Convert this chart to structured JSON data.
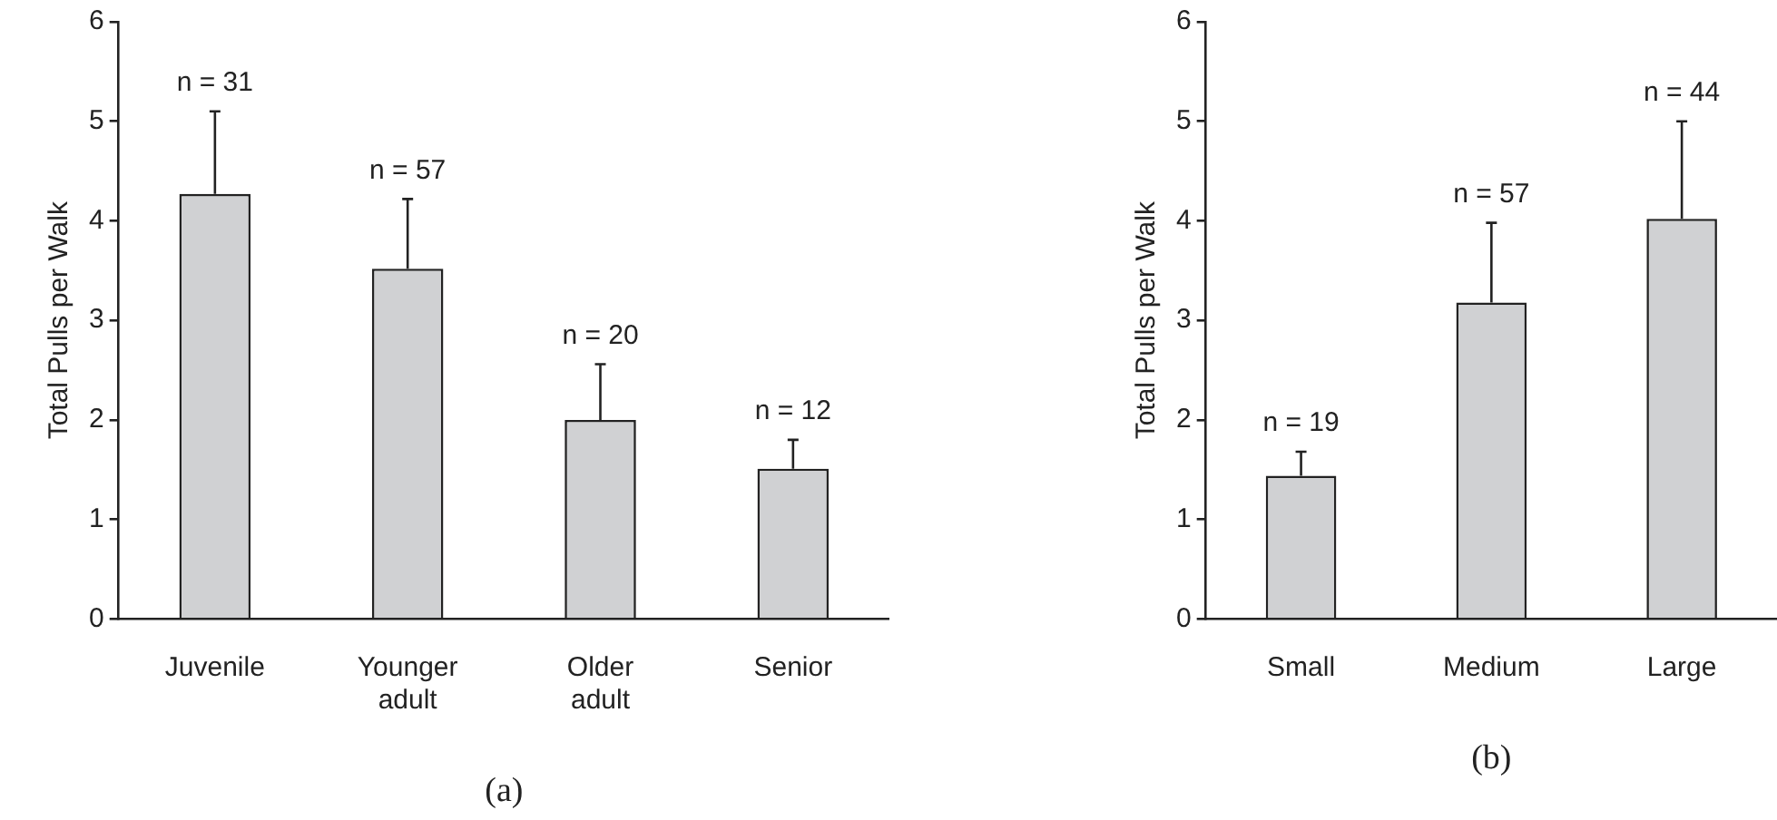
{
  "chart_data": [
    {
      "type": "bar",
      "categories": [
        "Juvenile",
        "Younger adult",
        "Older adult",
        "Senior"
      ],
      "values": [
        4.27,
        3.52,
        2.0,
        1.51
      ],
      "color": "#d0d1d3",
      "errors": [
        [
          4.27,
          5.1
        ],
        [
          3.52,
          4.22
        ],
        [
          2.0,
          2.56
        ],
        [
          1.51,
          1.8
        ]
      ],
      "ylim": [
        0,
        6
      ],
      "yticks": [
        0,
        1,
        2,
        3,
        4,
        5,
        6
      ],
      "ylabel": "Total Pulls per Walk",
      "xlabel": "(a)",
      "grid": false,
      "legend": false,
      "annotations": [
        {
          "text": "n = 31",
          "x": "Juvenile",
          "y": 5.1
        },
        {
          "text": "n = 57",
          "x": "Younger adult",
          "y": 4.22
        },
        {
          "text": "n = 20",
          "x": "Older adult",
          "y": 2.56
        },
        {
          "text": "n = 12",
          "x": "Senior",
          "y": 1.8
        }
      ]
    },
    {
      "type": "bar",
      "categories": [
        "Small",
        "Medium",
        "Large"
      ],
      "values": [
        1.44,
        3.18,
        4.02
      ],
      "color": "#d0d1d3",
      "errors": [
        [
          1.44,
          1.68
        ],
        [
          3.18,
          3.98
        ],
        [
          4.02,
          5.0
        ]
      ],
      "ylim": [
        0,
        6
      ],
      "yticks": [
        0,
        1,
        2,
        3,
        4,
        5,
        6
      ],
      "ylabel": "Total Pulls per Walk",
      "xlabel": "(b)",
      "grid": false,
      "legend": false,
      "annotations": [
        {
          "text": "n = 19",
          "x": "Small",
          "y": 1.68
        },
        {
          "text": "n = 57",
          "x": "Medium",
          "y": 3.98
        },
        {
          "text": "n = 44",
          "x": "Large",
          "y": 5.0
        }
      ]
    }
  ]
}
